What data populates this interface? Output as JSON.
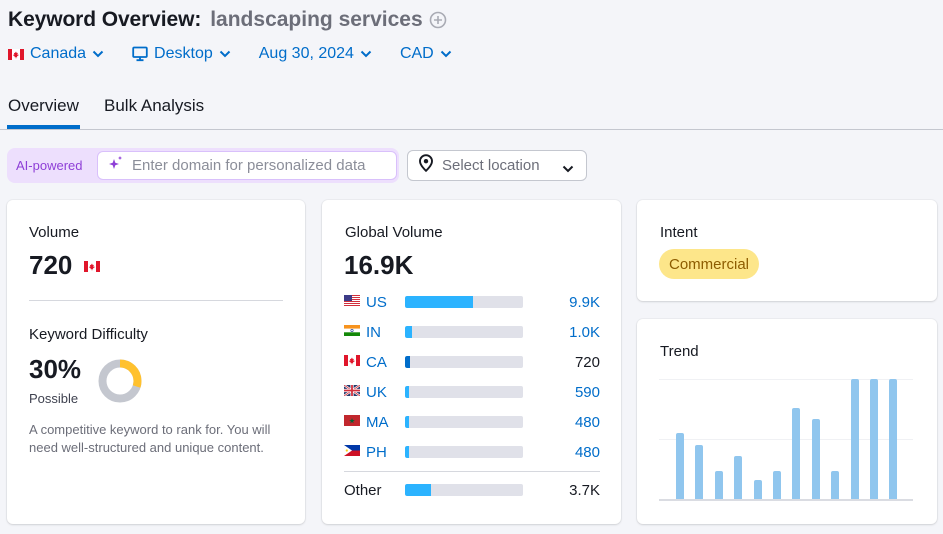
{
  "header": {
    "title": "Keyword Overview:",
    "keyword": "landscaping services",
    "add_icon": "plus-circle-icon"
  },
  "filters": {
    "country": "Canada",
    "device": "Desktop",
    "date": "Aug 30, 2024",
    "currency": "CAD"
  },
  "tabs": [
    {
      "label": "Overview",
      "active": true
    },
    {
      "label": "Bulk Analysis",
      "active": false
    }
  ],
  "personalization": {
    "ai_label": "AI-powered",
    "domain_placeholder": "Enter domain for personalized data",
    "location_placeholder": "Select location"
  },
  "volume": {
    "label": "Volume",
    "value": "720",
    "flag": "CA"
  },
  "keyword_difficulty": {
    "label": "Keyword Difficulty",
    "value": "30%",
    "percent": 30,
    "rating": "Possible",
    "description": "A competitive keyword to rank for. You will need well-structured and unique content.",
    "colors": {
      "filled": "#ffc12e",
      "empty": "#c4c7cf"
    }
  },
  "global_volume": {
    "label": "Global Volume",
    "value": "16.9K",
    "countries": [
      {
        "code": "US",
        "value": "9.9K",
        "fill_pct": 58,
        "link": true
      },
      {
        "code": "IN",
        "value": "1.0K",
        "fill_pct": 6,
        "link": true
      },
      {
        "code": "CA",
        "value": "720",
        "fill_pct": 4,
        "link": false,
        "highlight": true
      },
      {
        "code": "UK",
        "value": "590",
        "fill_pct": 3,
        "link": true
      },
      {
        "code": "MA",
        "value": "480",
        "fill_pct": 3,
        "link": true
      },
      {
        "code": "PH",
        "value": "480",
        "fill_pct": 3,
        "link": true
      }
    ],
    "other": {
      "label": "Other",
      "value": "3.7K",
      "fill_pct": 22
    }
  },
  "intent": {
    "label": "Intent",
    "badge": "Commercial"
  },
  "trend": {
    "label": "Trend",
    "bars": [
      0.55,
      0.45,
      0.23,
      0.36,
      0.16,
      0.23,
      0.76,
      0.67,
      0.23,
      1.0,
      1.0,
      1.0
    ]
  },
  "colors": {
    "accent": "#006dca",
    "bar_fill": "#2bb3ff",
    "bar_fill_highlight": "#006dca",
    "trend_bar": "#90c6ee",
    "ai_purple": "#8e3fd7",
    "intent_bg": "#fde68a"
  }
}
